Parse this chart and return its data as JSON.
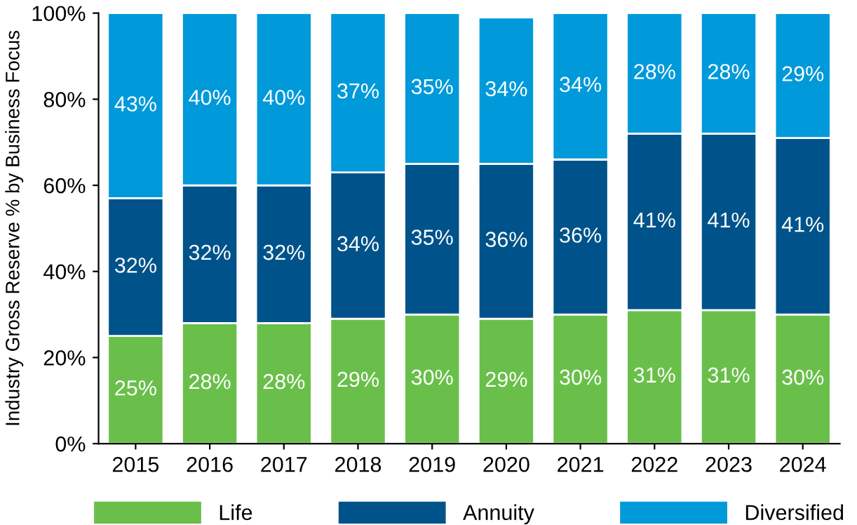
{
  "chart_data": {
    "type": "bar",
    "stacked": true,
    "ylabel": "Industry Gross Reserve % by Business Focus",
    "categories": [
      "2015",
      "2016",
      "2017",
      "2018",
      "2019",
      "2020",
      "2021",
      "2022",
      "2023",
      "2024"
    ],
    "series": [
      {
        "name": "Life",
        "color": "#6abf4b",
        "values": [
          25,
          28,
          28,
          29,
          30,
          29,
          30,
          31,
          31,
          30
        ],
        "value_labels": [
          "25%",
          "28%",
          "28%",
          "29%",
          "30%",
          "29%",
          "30%",
          "31%",
          "31%",
          "30%"
        ]
      },
      {
        "name": "Annuity",
        "color": "#00538a",
        "values": [
          32,
          32,
          32,
          34,
          35,
          36,
          36,
          41,
          41,
          41
        ],
        "value_labels": [
          "32%",
          "32%",
          "32%",
          "34%",
          "35%",
          "36%",
          "36%",
          "41%",
          "41%",
          "41%"
        ]
      },
      {
        "name": "Diversified",
        "color": "#0099da",
        "values": [
          43,
          40,
          40,
          37,
          35,
          34,
          34,
          28,
          28,
          29
        ],
        "value_labels": [
          "43%",
          "40%",
          "40%",
          "37%",
          "35%",
          "34%",
          "34%",
          "28%",
          "28%",
          "29%"
        ]
      }
    ],
    "ylim": [
      0,
      100
    ],
    "yticks": [
      {
        "value": 0,
        "label": "0%"
      },
      {
        "value": 20,
        "label": "20%"
      },
      {
        "value": 40,
        "label": "40%"
      },
      {
        "value": 60,
        "label": "60%"
      },
      {
        "value": 80,
        "label": "80%"
      },
      {
        "value": 100,
        "label": "100%"
      }
    ],
    "grid": false,
    "legend": "bottom"
  }
}
